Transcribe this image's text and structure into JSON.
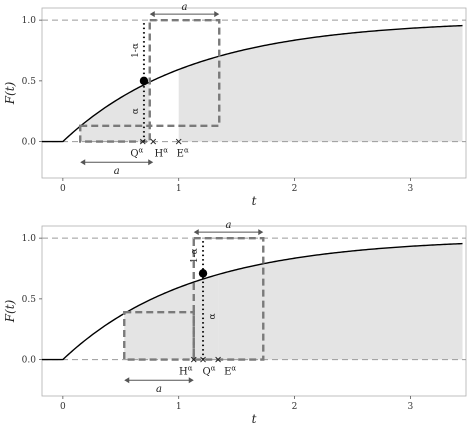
{
  "chart_data": [
    {
      "type": "line",
      "panel": "top",
      "xlabel": "t",
      "ylabel": "F(t)",
      "xlim": [
        -0.18,
        3.48
      ],
      "ylim": [
        -0.3,
        1.1
      ],
      "xticks": [
        "0",
        "1",
        "2",
        "3"
      ],
      "yticks": [
        "0.0",
        "0.5",
        "1.0"
      ],
      "grid": false,
      "curve": {
        "x0": 0.0,
        "rate": 0.9,
        "y_end": 0.96
      },
      "point": {
        "x": 0.7,
        "y": 0.5
      },
      "markers": [
        {
          "x": 0.69,
          "label": "Qα"
        },
        {
          "x": 0.78,
          "label": "Hα"
        },
        {
          "x": 1.0,
          "label": "Eα"
        }
      ],
      "shaded_ranges": [
        [
          0.15,
          0.75
        ],
        [
          1.0,
          3.45
        ]
      ],
      "dashed_boxes": [
        {
          "x1": 0.15,
          "x2": 0.75,
          "y1": 0.0,
          "y2": 0.13
        },
        {
          "x1": 0.75,
          "x2": 1.35,
          "y1": 0.13,
          "y2": 1.0
        }
      ],
      "arrows": [
        {
          "x1": 0.75,
          "x2": 1.35,
          "y": 1.05,
          "label": "a"
        },
        {
          "x1": 0.15,
          "x2": 0.78,
          "y": -0.17,
          "label": "a"
        }
      ],
      "vline": {
        "x": 0.7,
        "labels": [
          "1-α",
          "α"
        ]
      }
    },
    {
      "type": "line",
      "panel": "bottom",
      "xlabel": "t",
      "ylabel": "F(t)",
      "xlim": [
        -0.18,
        3.48
      ],
      "ylim": [
        -0.3,
        1.1
      ],
      "xticks": [
        "0",
        "1",
        "2",
        "3"
      ],
      "yticks": [
        "0.0",
        "0.5",
        "1.0"
      ],
      "grid": false,
      "curve": {
        "x0": 0.0,
        "rate": 0.9,
        "y_end": 0.96
      },
      "point": {
        "x": 1.21,
        "y": 0.71
      },
      "markers": [
        {
          "x": 1.13,
          "label": "Hα"
        },
        {
          "x": 1.21,
          "label": "Qα"
        },
        {
          "x": 1.34,
          "label": "Eα"
        }
      ],
      "shaded_ranges": [
        [
          0.53,
          1.34
        ],
        [
          1.34,
          3.45
        ]
      ],
      "dashed_boxes": [
        {
          "x1": 0.53,
          "x2": 1.13,
          "y1": 0.0,
          "y2": 0.39
        },
        {
          "x1": 1.13,
          "x2": 1.73,
          "y1": 0.0,
          "y2": 1.0
        }
      ],
      "arrows": [
        {
          "x1": 1.13,
          "x2": 1.73,
          "y": 1.05,
          "label": "a"
        },
        {
          "x1": 0.53,
          "x2": 1.13,
          "y": -0.17,
          "label": "a"
        }
      ],
      "vline": {
        "x": 1.21,
        "labels": [
          "1-α",
          "α"
        ]
      }
    }
  ]
}
